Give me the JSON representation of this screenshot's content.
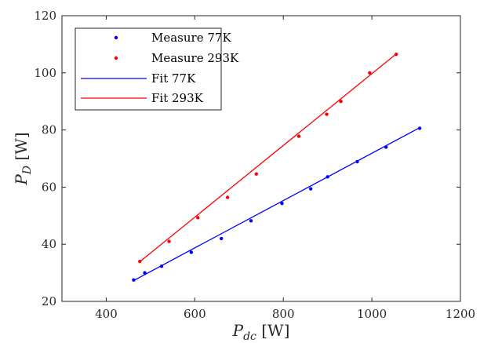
{
  "chart_data": {
    "type": "scatter",
    "xlabel": {
      "main": "P",
      "sub": "dc",
      "unit": " [W]"
    },
    "ylabel": {
      "main": "P",
      "sub": "D",
      "unit": " [W]"
    },
    "xlim": [
      300,
      1200
    ],
    "ylim": [
      20,
      120
    ],
    "xticks": [
      400,
      600,
      800,
      1000,
      1200
    ],
    "yticks": [
      20,
      40,
      60,
      80,
      100,
      120
    ],
    "grid": false,
    "legend": "top-left",
    "series": [
      {
        "name": "Measure 77K",
        "kind": "markers",
        "color": "#0000ff",
        "x": [
          462,
          487,
          525,
          592,
          660,
          727,
          797,
          862,
          900,
          967,
          1032,
          1108
        ],
        "y": [
          27.5,
          30.0,
          32.3,
          37.2,
          42.0,
          48.2,
          54.3,
          59.4,
          63.6,
          68.9,
          74.0,
          80.6
        ]
      },
      {
        "name": "Measure 293K",
        "kind": "markers",
        "color": "#ff0000",
        "x": [
          476,
          542,
          607,
          674,
          739,
          835,
          898,
          930,
          995,
          1055
        ],
        "y": [
          34.0,
          41.0,
          49.3,
          56.4,
          64.6,
          77.8,
          85.5,
          90.0,
          100.0,
          106.5
        ]
      },
      {
        "name": "Fit 77K",
        "kind": "line",
        "color": "#0000ff",
        "x": [
          462,
          1108
        ],
        "y": [
          27.3,
          80.8
        ]
      },
      {
        "name": "Fit 293K",
        "kind": "line",
        "color": "#ff0000",
        "x": [
          476,
          1055
        ],
        "y": [
          33.9,
          106.6
        ]
      }
    ]
  }
}
